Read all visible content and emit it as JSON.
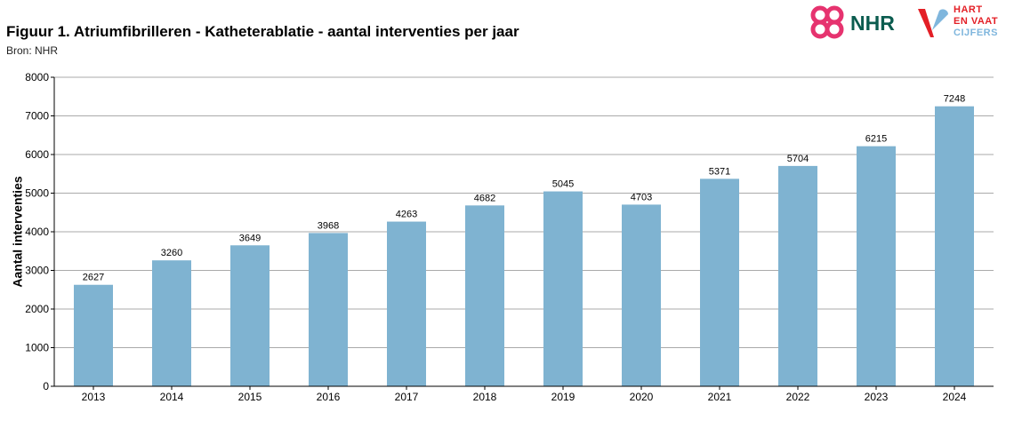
{
  "header": {
    "title": "Figuur 1. Atriumfibrilleren - Katheterablatie - aantal interventies per jaar",
    "source": "Bron: NHR"
  },
  "logos": {
    "nhr_text": "NHR",
    "hart_line1": "HART",
    "hart_line2": "EN VAAT",
    "hart_line3": "CIJFERS",
    "nhr_pink": "#e6336f",
    "nhr_green": "#0b5c4f",
    "hart_red": "#e31f26",
    "hart_blue": "#7fb6dd"
  },
  "chart_data": {
    "type": "bar",
    "categories": [
      "2013",
      "2014",
      "2015",
      "2016",
      "2017",
      "2018",
      "2019",
      "2020",
      "2021",
      "2022",
      "2023",
      "2024"
    ],
    "values": [
      2627,
      3260,
      3649,
      3968,
      4263,
      4682,
      5045,
      4703,
      5371,
      5704,
      6215,
      7248
    ],
    "title": "Figuur 1. Atriumfibrilleren - Katheterablatie - aantal interventies per jaar",
    "subtitle": "Bron: NHR",
    "xlabel": "",
    "ylabel": "Aantal interventies",
    "ylim": [
      0,
      8000
    ],
    "yticks": [
      0,
      1000,
      2000,
      3000,
      4000,
      5000,
      6000,
      7000,
      8000
    ],
    "grid": true,
    "legend": "none",
    "bar_color": "#7fb3d1",
    "grid_color": "#aaaaaa"
  }
}
